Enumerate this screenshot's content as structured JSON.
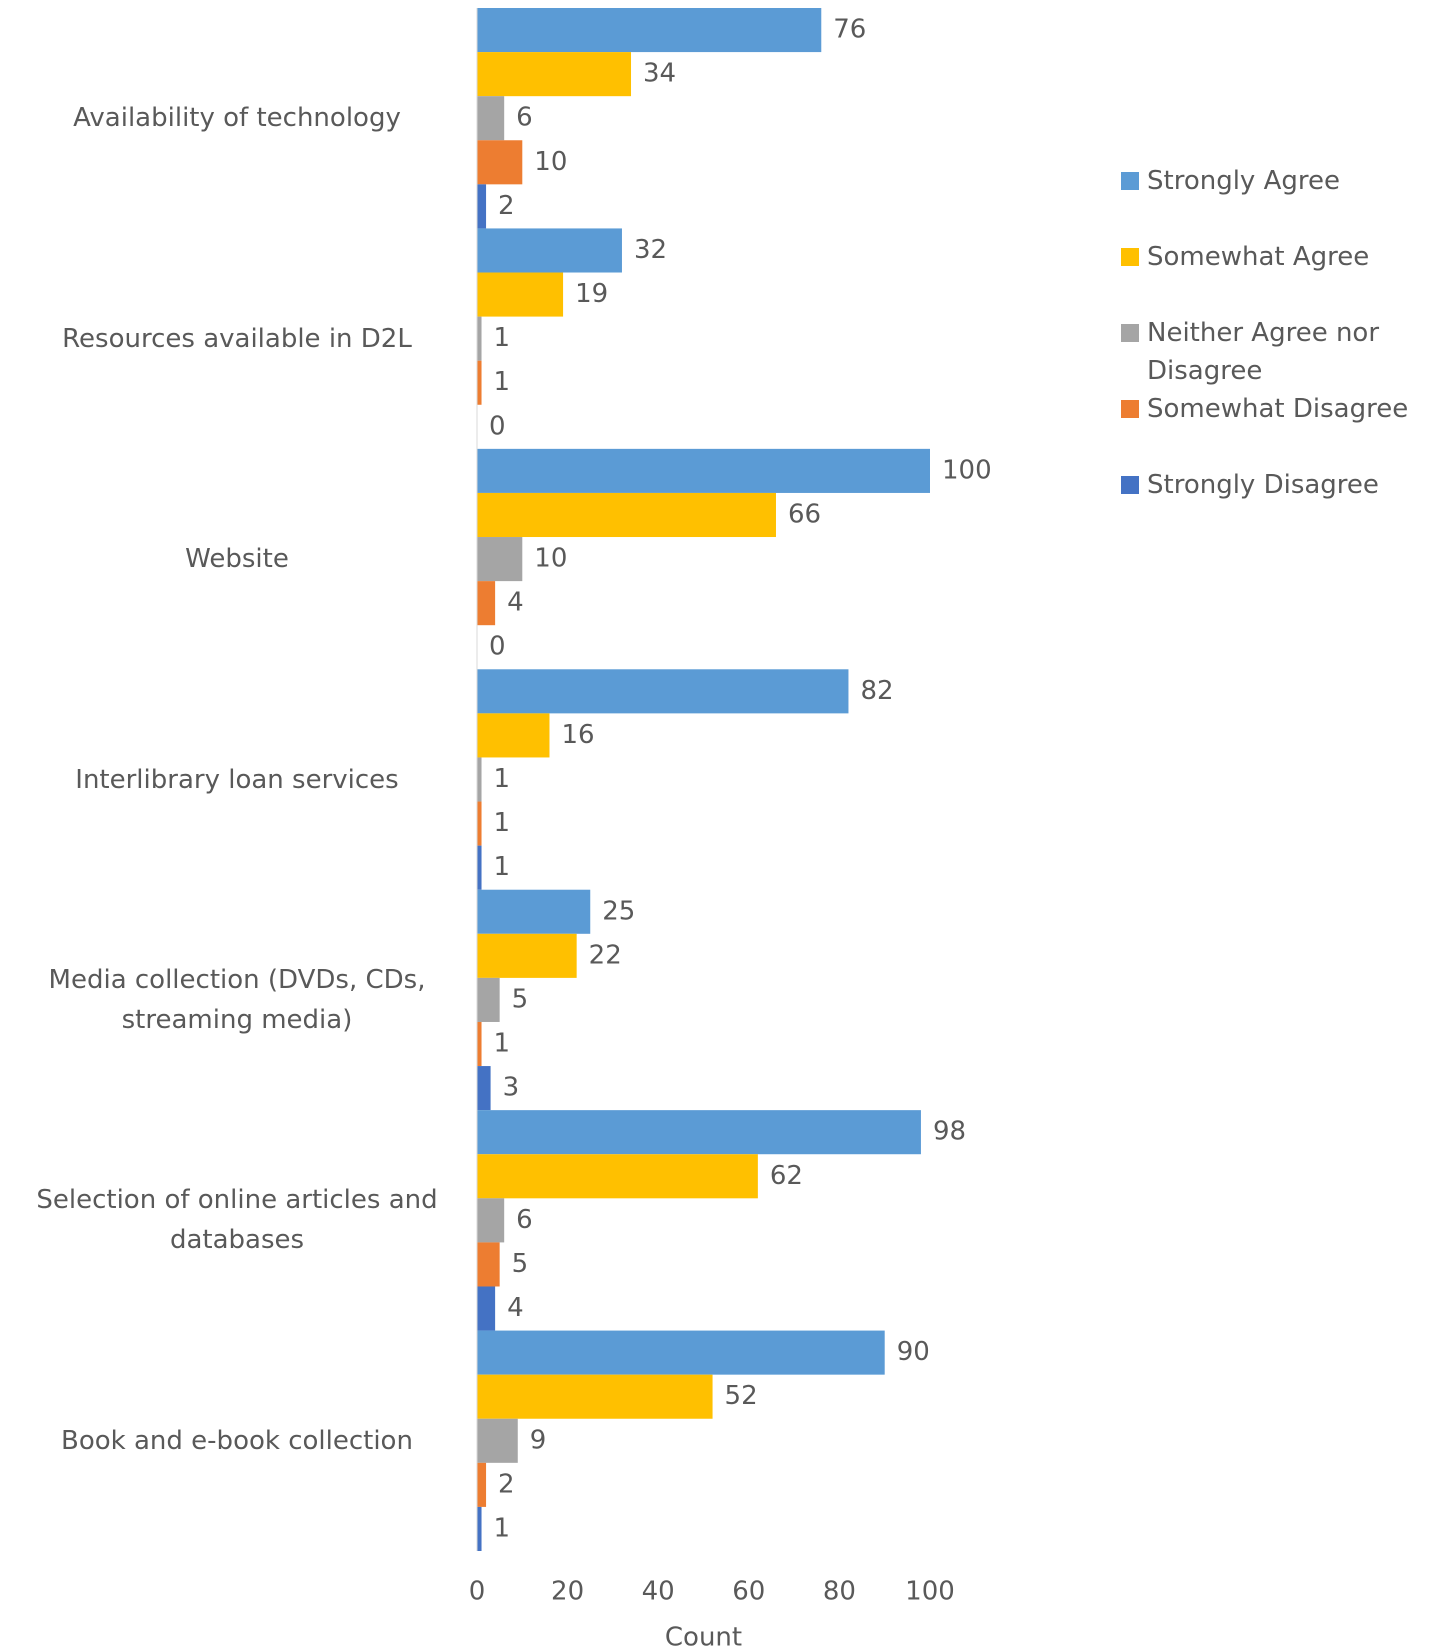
{
  "chart_data": {
    "type": "bar",
    "orientation": "horizontal",
    "x_label": "Count",
    "categories": [
      "Availability of technology",
      "Resources available in D2L",
      "Website",
      "Interlibrary loan services",
      "Media collection (DVDs, CDs, streaming media)",
      "Selection of online articles and databases",
      "Book and e-book collection"
    ],
    "series": [
      {
        "name": "Strongly Agree",
        "color": "#5b9bd5",
        "values": [
          76,
          32,
          100,
          82,
          25,
          98,
          90
        ]
      },
      {
        "name": "Somewhat Agree",
        "color": "#ffc000",
        "values": [
          34,
          19,
          66,
          16,
          22,
          62,
          52
        ]
      },
      {
        "name": "Neither Agree nor Disagree",
        "color": "#a5a5a5",
        "values": [
          6,
          1,
          10,
          1,
          5,
          6,
          9
        ]
      },
      {
        "name": "Somewhat Disagree",
        "color": "#ed7d31",
        "values": [
          10,
          1,
          4,
          1,
          1,
          5,
          2
        ]
      },
      {
        "name": "Strongly Disagree",
        "color": "#4472c4",
        "values": [
          2,
          0,
          0,
          1,
          3,
          4,
          1
        ]
      }
    ],
    "xlim": [
      0,
      100
    ],
    "xticks": [
      0,
      20,
      40,
      60,
      80,
      100
    ],
    "grid": false,
    "legend": "right",
    "data_labels": true
  }
}
